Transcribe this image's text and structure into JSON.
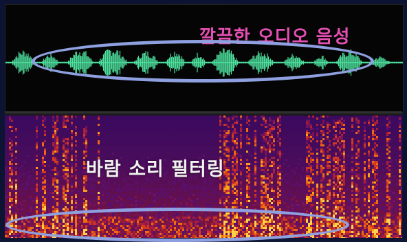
{
  "waveform": {
    "caption": "깔끔한 오디오 음성",
    "color": "#4fe3a0",
    "caption_color": "#e64fb4"
  },
  "spectrogram": {
    "caption": "바람 소리 필터링",
    "caption_color": "#f2f2f2"
  },
  "highlight": {
    "color": "#8fa0e0"
  }
}
